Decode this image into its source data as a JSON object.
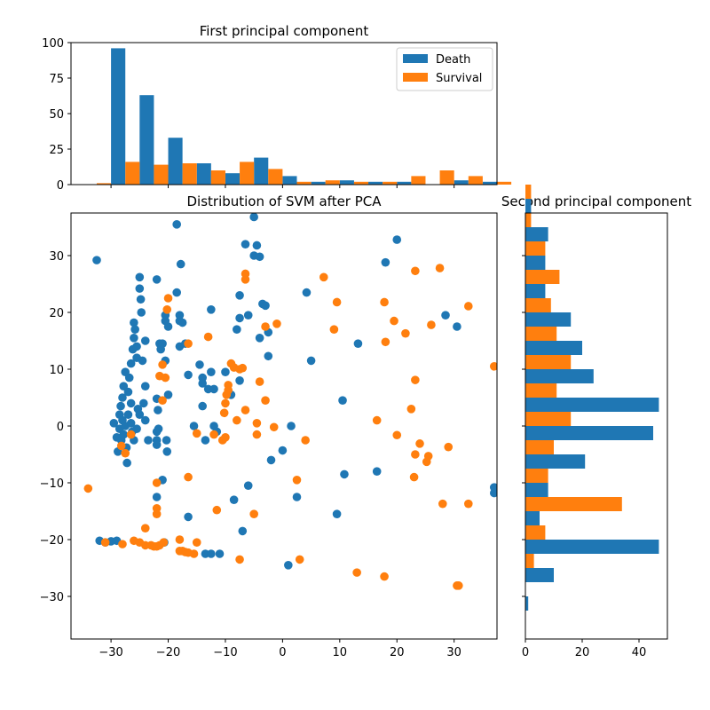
{
  "colors": {
    "death": "#1f77b4",
    "survival": "#ff7f0e"
  },
  "chart_data": [
    {
      "id": "top-hist",
      "type": "bar",
      "title": "First principal component",
      "orientation": "vertical",
      "xlim": [
        -37,
        37.5
      ],
      "ylim": [
        0,
        100
      ],
      "xticks": [
        -30,
        -20,
        -10,
        0,
        10,
        20,
        30
      ],
      "xtick_labels_visible": false,
      "yticks": [
        0,
        25,
        50,
        75,
        100
      ],
      "ytick_labels": [
        "0",
        "25",
        "50",
        "75",
        "100"
      ],
      "bin_start": -35,
      "bin_width": 5,
      "legend": {
        "position": "top-right",
        "entries": [
          "Death",
          "Survival"
        ]
      },
      "series": [
        {
          "name": "Death",
          "values": [
            0,
            96,
            63,
            33,
            15,
            8,
            19,
            6,
            2,
            3,
            2,
            2,
            0,
            3,
            2
          ]
        },
        {
          "name": "Survival",
          "values": [
            1,
            16,
            14,
            15,
            10,
            16,
            11,
            2,
            3,
            2,
            2,
            6,
            10,
            6,
            2
          ]
        }
      ]
    },
    {
      "id": "scatter",
      "type": "scatter",
      "title": "Distribution of SVM after PCA",
      "xlim": [
        -37,
        37.5
      ],
      "ylim": [
        -37.5,
        37.5
      ],
      "xticks": [
        -30,
        -20,
        -10,
        0,
        10,
        20,
        30
      ],
      "xtick_labels": [
        "−30",
        "−20",
        "−10",
        "0",
        "10",
        "20",
        "30"
      ],
      "yticks": [
        -30,
        -20,
        -10,
        0,
        10,
        20,
        30
      ],
      "ytick_labels": [
        "−30",
        "−20",
        "−10",
        "0",
        "10",
        "20",
        "30"
      ],
      "series": [
        {
          "name": "Death",
          "points": [
            [
              -32.5,
              29.2
            ],
            [
              -32,
              -20.2
            ],
            [
              -31,
              -20.5
            ],
            [
              -30,
              -20.3
            ],
            [
              -29,
              -20.2
            ],
            [
              -29.5,
              0.5
            ],
            [
              -29,
              -2
            ],
            [
              -28.8,
              -4.5
            ],
            [
              -28.5,
              2
            ],
            [
              -28.5,
              -0.5
            ],
            [
              -28.3,
              3.5
            ],
            [
              -28.2,
              -2.5
            ],
            [
              -28,
              1
            ],
            [
              -28,
              5
            ],
            [
              -27.8,
              7
            ],
            [
              -27.8,
              -1.5
            ],
            [
              -27.5,
              0
            ],
            [
              -27.5,
              9.5
            ],
            [
              -27.3,
              -3.8
            ],
            [
              -27.2,
              -6.5
            ],
            [
              -27,
              2
            ],
            [
              -27,
              6
            ],
            [
              -26.8,
              8.5
            ],
            [
              -26.5,
              11
            ],
            [
              -26.5,
              4
            ],
            [
              -26.5,
              0.5
            ],
            [
              -26.3,
              -1
            ],
            [
              -26.2,
              13.5
            ],
            [
              -26,
              15.5
            ],
            [
              -26,
              18.2
            ],
            [
              -26,
              -2.5
            ],
            [
              -25.8,
              17
            ],
            [
              -25.5,
              12
            ],
            [
              -25.5,
              14
            ],
            [
              -25.5,
              -0.5
            ],
            [
              -25.3,
              3
            ],
            [
              -25,
              26.2
            ],
            [
              -25,
              24.2
            ],
            [
              -25,
              2
            ],
            [
              -24.8,
              22.3
            ],
            [
              -24.7,
              20
            ],
            [
              -24.5,
              11.5
            ],
            [
              -24.3,
              4
            ],
            [
              -24,
              7
            ],
            [
              -24,
              15
            ],
            [
              -24,
              1
            ],
            [
              -23.5,
              -2.5
            ],
            [
              -22,
              4.8
            ],
            [
              -22,
              -1
            ],
            [
              -22,
              -2.5
            ],
            [
              -22,
              -3.3
            ],
            [
              -22,
              25.8
            ],
            [
              -22,
              -12.5
            ],
            [
              -21.8,
              2.8
            ],
            [
              -21.7,
              -0.5
            ],
            [
              -21.5,
              14.5
            ],
            [
              -21.3,
              13.5
            ],
            [
              -21,
              14.5
            ],
            [
              -21,
              -9.5
            ],
            [
              -20.7,
              -20.5
            ],
            [
              -20.5,
              19.5
            ],
            [
              -20.5,
              18.5
            ],
            [
              -20.5,
              11.5
            ],
            [
              -20.3,
              -2.5
            ],
            [
              -20.2,
              -4.5
            ],
            [
              -20,
              17.5
            ],
            [
              -20,
              5.5
            ],
            [
              -18.5,
              35.5
            ],
            [
              -18.5,
              23.5
            ],
            [
              -18,
              19.5
            ],
            [
              -18,
              18.5
            ],
            [
              -18,
              14
            ],
            [
              -17.8,
              28.5
            ],
            [
              -17.5,
              18.2
            ],
            [
              -17,
              14.5
            ],
            [
              -16.5,
              9
            ],
            [
              -16.5,
              -16
            ],
            [
              -15.5,
              0
            ],
            [
              -14.5,
              10.8
            ],
            [
              -14,
              8.5
            ],
            [
              -14,
              7.5
            ],
            [
              -14,
              3.5
            ],
            [
              -13.5,
              -2.5
            ],
            [
              -13.5,
              -22.5
            ],
            [
              -13,
              6.5
            ],
            [
              -12.5,
              9.5
            ],
            [
              -12.5,
              20.5
            ],
            [
              -12.5,
              -22.5
            ],
            [
              -12,
              6.5
            ],
            [
              -12,
              0
            ],
            [
              -11.5,
              -1
            ],
            [
              -11,
              -22.5
            ],
            [
              -10,
              9.5
            ],
            [
              -9,
              5.5
            ],
            [
              -8.5,
              -13
            ],
            [
              -8,
              17
            ],
            [
              -7.5,
              23
            ],
            [
              -7.5,
              19
            ],
            [
              -7.5,
              8
            ],
            [
              -7,
              -18.5
            ],
            [
              -6.5,
              32
            ],
            [
              -6,
              19.5
            ],
            [
              -6,
              -10.5
            ],
            [
              -5,
              36.8
            ],
            [
              -5,
              30
            ],
            [
              -4.5,
              31.8
            ],
            [
              -4,
              15.5
            ],
            [
              -4,
              29.8
            ],
            [
              -3.5,
              21.5
            ],
            [
              -3,
              21.2
            ],
            [
              -2.5,
              12.3
            ],
            [
              -2.5,
              16.5
            ],
            [
              -2,
              -6
            ],
            [
              0,
              -4.3
            ],
            [
              1,
              -24.5
            ],
            [
              1.5,
              0
            ],
            [
              2.5,
              -12.5
            ],
            [
              4.2,
              23.5
            ],
            [
              5,
              11.5
            ],
            [
              9.5,
              -15.5
            ],
            [
              10.5,
              4.5
            ],
            [
              10.8,
              -8.5
            ],
            [
              13.2,
              14.5
            ],
            [
              16.5,
              -8
            ],
            [
              18,
              28.8
            ],
            [
              20,
              32.8
            ],
            [
              28.5,
              19.5
            ],
            [
              30.5,
              17.5
            ],
            [
              37,
              -10.8
            ],
            [
              37,
              -11.8
            ]
          ]
        },
        {
          "name": "Survival",
          "points": [
            [
              -34,
              -11
            ],
            [
              -31,
              -20.5
            ],
            [
              -28,
              -20.8
            ],
            [
              -27.5,
              -4.8
            ],
            [
              -28.2,
              -3.5
            ],
            [
              -26.5,
              -1.5
            ],
            [
              -26,
              -20.2
            ],
            [
              -25,
              -20.5
            ],
            [
              -24,
              -18
            ],
            [
              -24,
              -21
            ],
            [
              -23,
              -21
            ],
            [
              -22.5,
              -21.2
            ],
            [
              -22,
              -21.2
            ],
            [
              -22,
              -15.5
            ],
            [
              -22,
              -14.5
            ],
            [
              -22,
              -10
            ],
            [
              -21.5,
              -21
            ],
            [
              -21.5,
              8.8
            ],
            [
              -21,
              10.8
            ],
            [
              -21,
              4.5
            ],
            [
              -20.8,
              -20.5
            ],
            [
              -20.5,
              8.5
            ],
            [
              -20.2,
              20.5
            ],
            [
              -20,
              22.5
            ],
            [
              -18,
              -20
            ],
            [
              -18,
              -22
            ],
            [
              -17.5,
              -22
            ],
            [
              -17,
              -22.2
            ],
            [
              -16.5,
              -22.3
            ],
            [
              -16.5,
              14.5
            ],
            [
              -16.5,
              -9
            ],
            [
              -15.5,
              -22.5
            ],
            [
              -15,
              -20.5
            ],
            [
              -15,
              -1.3
            ],
            [
              -13,
              15.7
            ],
            [
              -12,
              -1.5
            ],
            [
              -11.5,
              -14.8
            ],
            [
              -10.5,
              -2.5
            ],
            [
              -10.2,
              2.3
            ],
            [
              -10,
              -2
            ],
            [
              -10,
              4
            ],
            [
              -9.8,
              5.5
            ],
            [
              -9.5,
              6.3
            ],
            [
              -9.5,
              7.2
            ],
            [
              -9,
              11
            ],
            [
              -8.5,
              10.3
            ],
            [
              -8,
              1
            ],
            [
              -7.5,
              -23.5
            ],
            [
              -7.5,
              10
            ],
            [
              -7,
              10.2
            ],
            [
              -6.5,
              2.8
            ],
            [
              -6.5,
              25.8
            ],
            [
              -6.5,
              26.8
            ],
            [
              -5,
              -15.5
            ],
            [
              -4.5,
              -1.5
            ],
            [
              -4.5,
              0.5
            ],
            [
              -4,
              7.8
            ],
            [
              -3,
              17.5
            ],
            [
              -3,
              4.5
            ],
            [
              -1.5,
              -0.2
            ],
            [
              -1,
              18
            ],
            [
              2.5,
              -9.5
            ],
            [
              3,
              -23.5
            ],
            [
              4,
              -2.5
            ],
            [
              7.2,
              26.2
            ],
            [
              9,
              17
            ],
            [
              9.5,
              21.8
            ],
            [
              13,
              -25.8
            ],
            [
              16.5,
              1
            ],
            [
              17.8,
              -26.5
            ],
            [
              17.8,
              21.8
            ],
            [
              18,
              14.8
            ],
            [
              19.5,
              18.5
            ],
            [
              20,
              -1.6
            ],
            [
              21.5,
              16.3
            ],
            [
              22.5,
              3
            ],
            [
              23,
              -9
            ],
            [
              23.2,
              27.3
            ],
            [
              23.2,
              8.1
            ],
            [
              23.2,
              -5
            ],
            [
              24,
              -3.1
            ],
            [
              25.2,
              -6.3
            ],
            [
              25.5,
              -5.3
            ],
            [
              26,
              17.8
            ],
            [
              27.5,
              27.8
            ],
            [
              28,
              -13.7
            ],
            [
              29,
              -3.7
            ],
            [
              30.5,
              -28.1
            ],
            [
              30.8,
              -28.1
            ],
            [
              32.5,
              -13.7
            ],
            [
              32.5,
              21.1
            ],
            [
              37,
              10.5
            ]
          ]
        }
      ]
    },
    {
      "id": "right-hist",
      "type": "bar",
      "title": "Second principal component",
      "orientation": "horizontal",
      "xlim": [
        0,
        50
      ],
      "ylim": [
        -37.5,
        37.5
      ],
      "xticks": [
        0,
        20,
        40
      ],
      "xtick_labels": [
        "0",
        "20",
        "40"
      ],
      "yticks": [
        -30,
        -20,
        -10,
        0,
        10,
        20,
        30
      ],
      "ytick_labels_visible": false,
      "bin_start": -32.5,
      "bin_width": 5,
      "series": [
        {
          "name": "Death",
          "values": [
            1,
            10,
            47,
            5,
            8,
            21,
            45,
            47,
            24,
            20,
            16,
            7,
            7,
            8,
            2
          ]
        },
        {
          "name": "Survival",
          "values": [
            0,
            3,
            7,
            34,
            8,
            10,
            16,
            11,
            16,
            11,
            9,
            12,
            7,
            2,
            2
          ]
        }
      ]
    }
  ]
}
